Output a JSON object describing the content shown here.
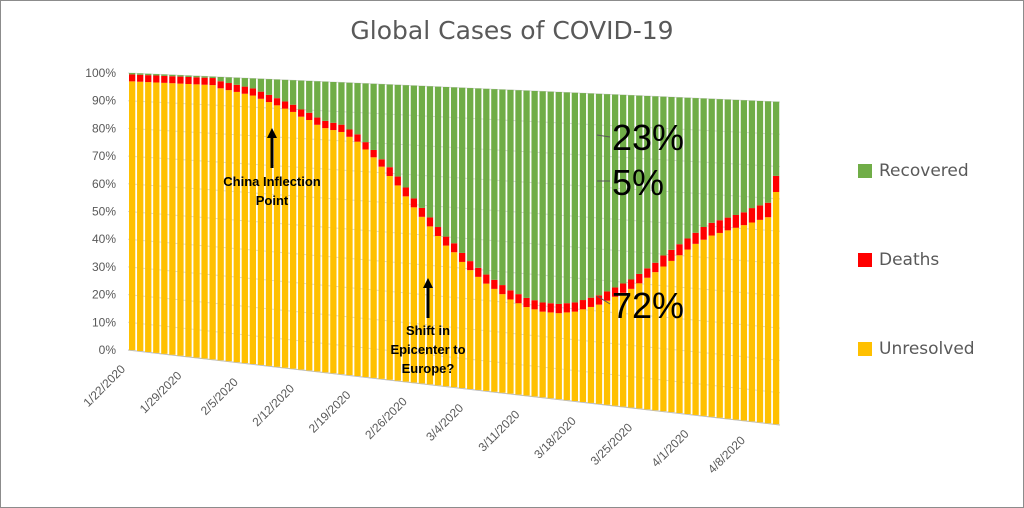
{
  "chart_data": {
    "type": "bar",
    "stacked": true,
    "normalized": true,
    "title": "Global Cases of COVID-19",
    "xlabel": "",
    "ylabel": "",
    "ylim": [
      0,
      1
    ],
    "y_ticks": [
      "0%",
      "10%",
      "20%",
      "30%",
      "40%",
      "50%",
      "60%",
      "70%",
      "80%",
      "90%",
      "100%"
    ],
    "x_tick_labels": [
      "1/22/2020",
      "1/29/2020",
      "2/5/2020",
      "2/12/2020",
      "2/19/2020",
      "2/26/2020",
      "3/4/2020",
      "3/11/2020",
      "3/18/2020",
      "3/25/2020",
      "4/1/2020",
      "4/8/2020"
    ],
    "date_start": "2020-01-22",
    "grid": true,
    "legend_position": "right",
    "series": [
      {
        "name": "Unresolved",
        "color": "#FFC000",
        "values": [
          0.97,
          0.97,
          0.97,
          0.97,
          0.97,
          0.97,
          0.97,
          0.97,
          0.97,
          0.97,
          0.97,
          0.96,
          0.955,
          0.95,
          0.945,
          0.94,
          0.93,
          0.92,
          0.91,
          0.9,
          0.89,
          0.875,
          0.865,
          0.85,
          0.84,
          0.835,
          0.83,
          0.815,
          0.8,
          0.775,
          0.75,
          0.72,
          0.69,
          0.66,
          0.625,
          0.59,
          0.56,
          0.53,
          0.5,
          0.47,
          0.45,
          0.42,
          0.395,
          0.375,
          0.355,
          0.34,
          0.325,
          0.31,
          0.3,
          0.29,
          0.285,
          0.28,
          0.28,
          0.28,
          0.285,
          0.29,
          0.3,
          0.31,
          0.32,
          0.335,
          0.35,
          0.365,
          0.38,
          0.4,
          0.42,
          0.44,
          0.46,
          0.48,
          0.5,
          0.52,
          0.54,
          0.555,
          0.57,
          0.58,
          0.59,
          0.6,
          0.61,
          0.62,
          0.63,
          0.64,
          0.72
        ]
      },
      {
        "name": "Deaths",
        "color": "#FF0000",
        "values": [
          0.025,
          0.025,
          0.025,
          0.025,
          0.025,
          0.025,
          0.025,
          0.025,
          0.025,
          0.025,
          0.025,
          0.025,
          0.025,
          0.025,
          0.025,
          0.025,
          0.025,
          0.025,
          0.025,
          0.025,
          0.025,
          0.025,
          0.025,
          0.025,
          0.025,
          0.025,
          0.025,
          0.025,
          0.025,
          0.025,
          0.025,
          0.025,
          0.03,
          0.03,
          0.03,
          0.03,
          0.03,
          0.03,
          0.03,
          0.03,
          0.03,
          0.03,
          0.03,
          0.03,
          0.03,
          0.03,
          0.03,
          0.03,
          0.03,
          0.03,
          0.03,
          0.03,
          0.03,
          0.03,
          0.03,
          0.03,
          0.03,
          0.03,
          0.03,
          0.03,
          0.03,
          0.03,
          0.03,
          0.03,
          0.03,
          0.03,
          0.035,
          0.035,
          0.035,
          0.035,
          0.035,
          0.04,
          0.04,
          0.04,
          0.04,
          0.04,
          0.04,
          0.045,
          0.045,
          0.045,
          0.05
        ]
      },
      {
        "name": "Recovered",
        "color": "#70AD47",
        "values": [
          0.005,
          0.005,
          0.005,
          0.005,
          0.005,
          0.005,
          0.005,
          0.005,
          0.005,
          0.005,
          0.005,
          0.015,
          0.02,
          0.025,
          0.03,
          0.035,
          0.045,
          0.055,
          0.065,
          0.075,
          0.085,
          0.1,
          0.11,
          0.125,
          0.135,
          0.14,
          0.145,
          0.16,
          0.175,
          0.2,
          0.225,
          0.255,
          0.28,
          0.31,
          0.345,
          0.38,
          0.41,
          0.44,
          0.47,
          0.5,
          0.52,
          0.55,
          0.575,
          0.595,
          0.615,
          0.63,
          0.645,
          0.66,
          0.67,
          0.68,
          0.685,
          0.69,
          0.69,
          0.69,
          0.685,
          0.68,
          0.67,
          0.66,
          0.65,
          0.635,
          0.62,
          0.605,
          0.59,
          0.57,
          0.55,
          0.53,
          0.505,
          0.485,
          0.465,
          0.445,
          0.425,
          0.405,
          0.39,
          0.38,
          0.37,
          0.36,
          0.35,
          0.335,
          0.325,
          0.315,
          0.23
        ]
      }
    ],
    "annotations": [
      {
        "text": "China Inflection Point",
        "lines": [
          "China Inflection",
          "Point"
        ]
      },
      {
        "text": "Shift in Epicenter to Europe?",
        "lines": [
          "Shift in",
          "Epicenter to",
          "Europe?"
        ]
      }
    ],
    "callouts": [
      {
        "series": "Recovered",
        "label": "23%"
      },
      {
        "series": "Deaths",
        "label": "5%"
      },
      {
        "series": "Unresolved",
        "label": "72%"
      }
    ]
  }
}
